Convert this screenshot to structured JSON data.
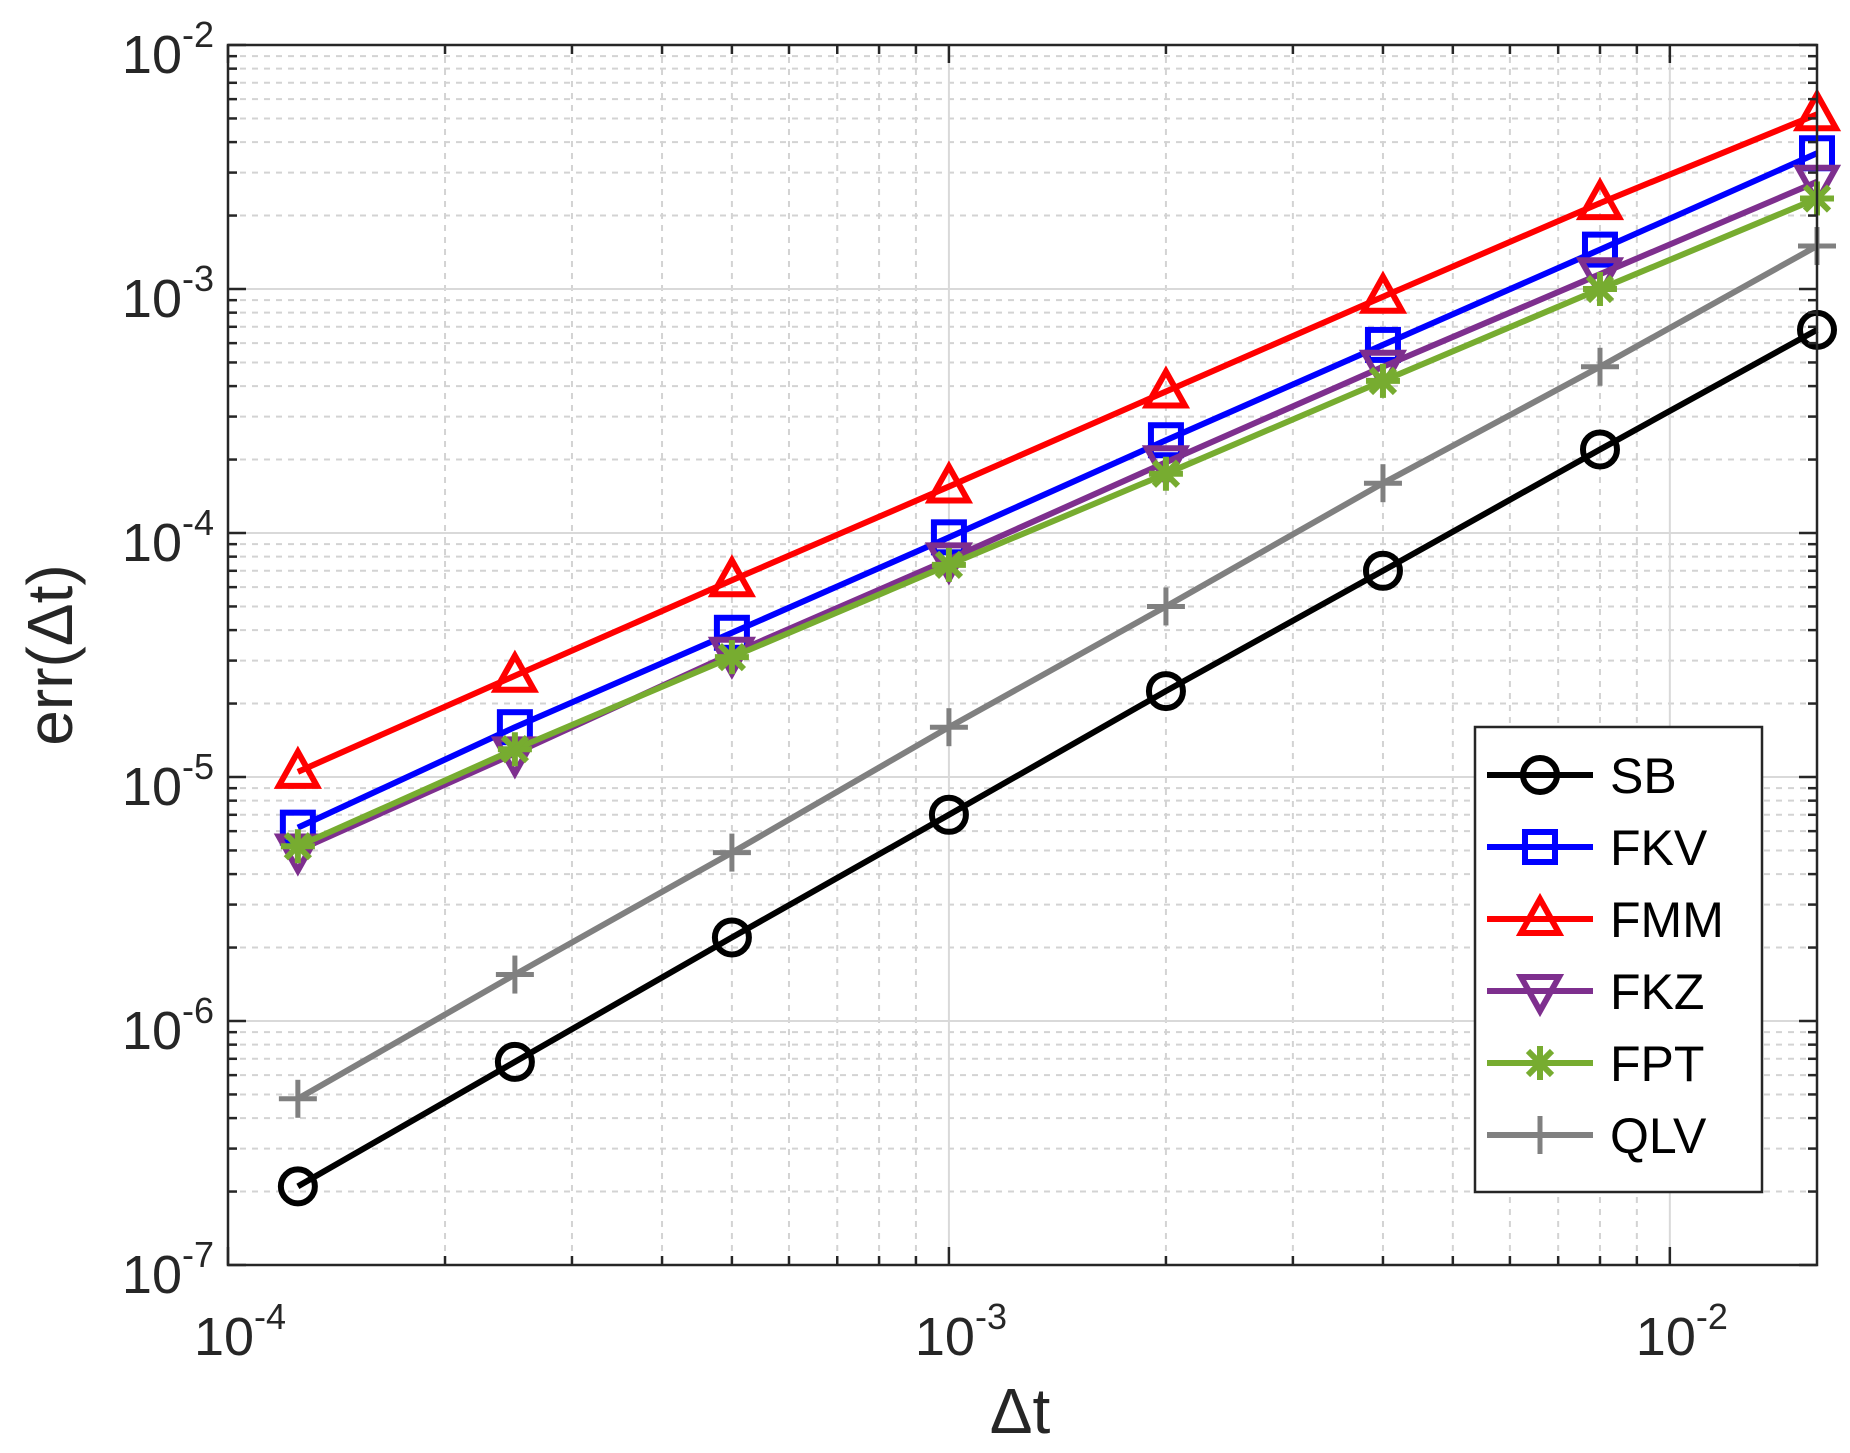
{
  "chart_data": {
    "type": "line",
    "xscale": "log",
    "yscale": "log",
    "xlabel": "Δt",
    "ylabel": "err(Δt)",
    "xlim": [
      0.0001,
      0.016
    ],
    "ylim": [
      1e-07,
      0.01
    ],
    "grid": true,
    "minor_grid": true,
    "legend_position": "right",
    "xticks": [
      {
        "base": "10",
        "exp": "-4"
      },
      {
        "base": "10",
        "exp": "-3"
      },
      {
        "base": "10",
        "exp": "-2"
      }
    ],
    "yticks": [
      {
        "base": "10",
        "exp": "-7"
      },
      {
        "base": "10",
        "exp": "-6"
      },
      {
        "base": "10",
        "exp": "-5"
      },
      {
        "base": "10",
        "exp": "-4"
      },
      {
        "base": "10",
        "exp": "-3"
      },
      {
        "base": "10",
        "exp": "-2"
      }
    ],
    "x": [
      0.000125,
      0.00025,
      0.0005,
      0.001,
      0.002,
      0.004,
      0.008,
      0.016
    ],
    "series": [
      {
        "name": "SB",
        "color": "#000000",
        "marker": "circle",
        "values": [
          2.1e-07,
          6.8e-07,
          2.2e-06,
          7e-06,
          2.25e-05,
          7e-05,
          0.00022,
          0.00068
        ]
      },
      {
        "name": "FKV",
        "color": "#0000ff",
        "marker": "square",
        "values": [
          6.2e-06,
          1.6e-05,
          3.9e-05,
          9.6e-05,
          0.00024,
          0.00059,
          0.00145,
          0.0036
        ]
      },
      {
        "name": "FMM",
        "color": "#ff0000",
        "marker": "triangle-up",
        "values": [
          1.05e-05,
          2.6e-05,
          6.4e-05,
          0.000155,
          0.00038,
          0.00093,
          0.00225,
          0.0052
        ]
      },
      {
        "name": "FKZ",
        "color": "#7e2f8e",
        "marker": "triangle-down",
        "values": [
          5e-06,
          1.25e-05,
          3.2e-05,
          7.8e-05,
          0.000195,
          0.00048,
          0.00115,
          0.00275
        ]
      },
      {
        "name": "FPT",
        "color": "#77ac30",
        "marker": "asterisk",
        "values": [
          5.2e-06,
          1.3e-05,
          3.1e-05,
          7.4e-05,
          0.000175,
          0.00042,
          0.001,
          0.00235
        ]
      },
      {
        "name": "QLV",
        "color": "#808080",
        "marker": "plus",
        "values": [
          4.8e-07,
          1.55e-06,
          4.9e-06,
          1.6e-05,
          5e-05,
          0.00016,
          0.00048,
          0.0015
        ]
      }
    ]
  }
}
